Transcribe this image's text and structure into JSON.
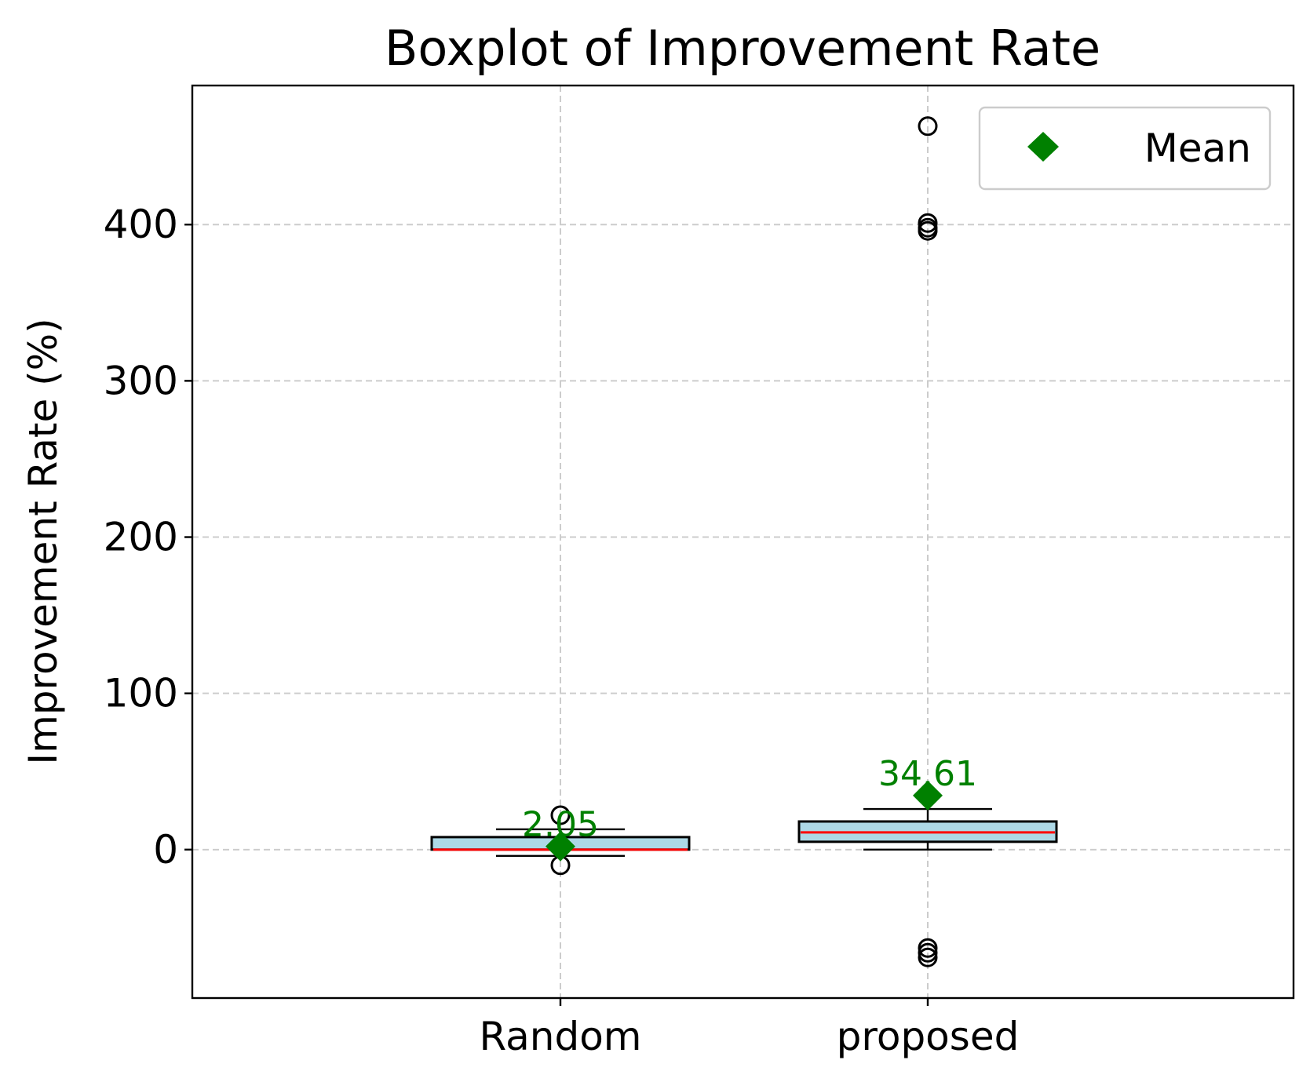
{
  "chart_data": {
    "type": "boxplot",
    "title": "Boxplot of Improvement Rate",
    "xlabel": "",
    "ylabel": "Improvement Rate (%)",
    "ylim": [
      -95,
      489
    ],
    "yticks": [
      0,
      100,
      200,
      300,
      400
    ],
    "ytick_labels": [
      "0",
      "100",
      "200",
      "300",
      "400"
    ],
    "grid": true,
    "legend": {
      "position": "top-right",
      "entries": [
        "Mean"
      ]
    },
    "colors": {
      "box_fill": "#add8e6",
      "median": "#ff0000",
      "mean_marker": "#008000",
      "mean_label": "#008000",
      "grid": "#cccccc",
      "lines": "#000000"
    },
    "categories": [
      "Random",
      "proposed"
    ],
    "boxes": [
      {
        "name": "Random",
        "whisker_low": -4,
        "q1": 0,
        "median": 0,
        "q3": 8,
        "whisker_high": 13,
        "mean": 2.05,
        "mean_label": "2.05",
        "outliers": [
          22,
          -10
        ]
      },
      {
        "name": "proposed",
        "whisker_low": 0,
        "q1": 5,
        "median": 11,
        "q3": 18,
        "whisker_high": 26,
        "mean": 34.61,
        "mean_label": "34.61",
        "outliers": [
          463,
          401,
          398,
          396,
          -63,
          -66,
          -69
        ]
      }
    ]
  }
}
